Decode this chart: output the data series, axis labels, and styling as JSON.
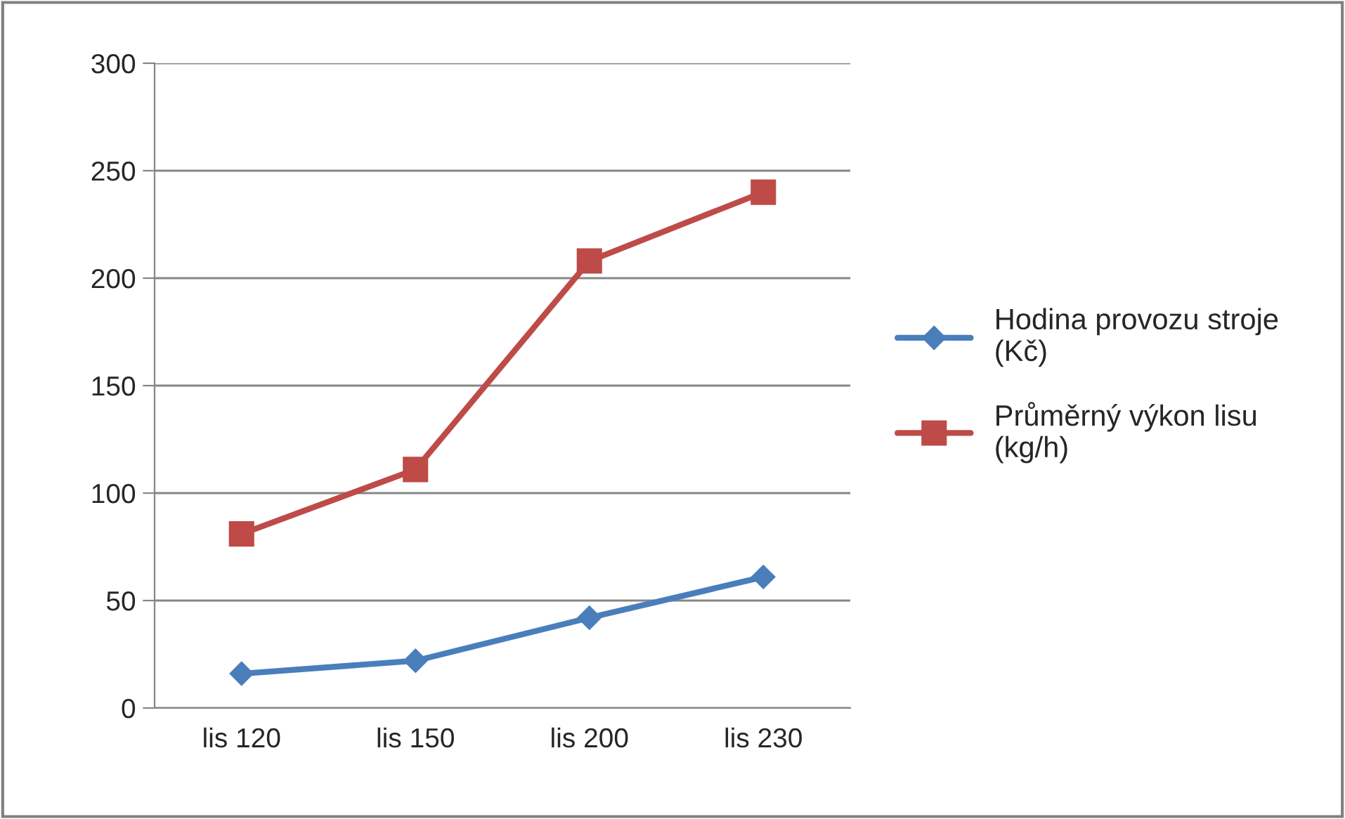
{
  "chart_data": {
    "type": "line",
    "categories": [
      "lis 120",
      "lis 150",
      "lis 200",
      "lis 230"
    ],
    "series": [
      {
        "name": "Hodina provozu stroje\n(Kč)",
        "color": "#4a7ebb",
        "values": [
          16,
          22,
          42,
          61
        ],
        "marker": "diamond"
      },
      {
        "name": "Průměrný výkon lisu\n(kg/h)",
        "color": "#be4b48",
        "values": [
          81,
          111,
          208,
          240
        ],
        "marker": "square"
      }
    ],
    "ylim": [
      0,
      300
    ],
    "yticks": [
      0,
      50,
      100,
      150,
      200,
      250,
      300
    ],
    "grid": "y",
    "legend": "right",
    "line_style": "solid"
  }
}
